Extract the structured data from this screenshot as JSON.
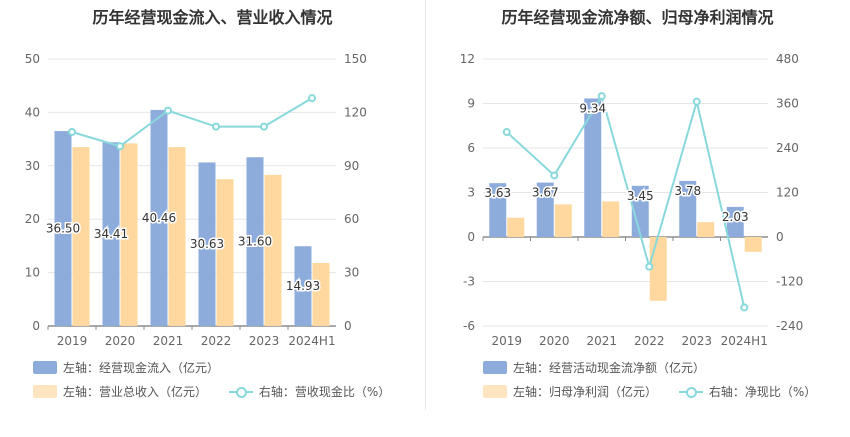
{
  "colors": {
    "bar_a": "#8eacdb",
    "bar_b": "#fed89f",
    "line": "#88d8dc",
    "grid": "#e6e6e6",
    "tick": "#666666"
  },
  "chart_data": [
    {
      "type": "bar",
      "title": "历年经营现金流入、营业收入情况",
      "categories": [
        "2019",
        "2020",
        "2021",
        "2022",
        "2023",
        "2024H1"
      ],
      "left_axis": {
        "ylim": [
          0,
          50
        ],
        "ticks": [
          0,
          10,
          20,
          30,
          40,
          50
        ]
      },
      "right_axis": {
        "ylim": [
          0,
          150
        ],
        "ticks": [
          0,
          30,
          60,
          90,
          120,
          150
        ]
      },
      "series": [
        {
          "name": "经营现金流入",
          "legend": "左轴：经营现金流入（亿元）",
          "axis": "left",
          "kind": "bar",
          "values": [
            36.5,
            34.41,
            40.46,
            30.63,
            31.6,
            14.93
          ],
          "labels": [
            "36.50",
            "34.41",
            "40.46",
            "30.63",
            "31.60",
            "14.93"
          ]
        },
        {
          "name": "营业总收入",
          "legend": "左轴：营业总收入（亿元）",
          "axis": "left",
          "kind": "bar",
          "values": [
            33.5,
            34.2,
            33.5,
            27.5,
            28.3,
            11.8
          ]
        },
        {
          "name": "营收现金比",
          "legend": "右轴：营收现金比（%）",
          "axis": "right",
          "kind": "line",
          "values": [
            109,
            101,
            121,
            112,
            112,
            128
          ]
        }
      ]
    },
    {
      "type": "bar",
      "title": "历年经营现金流净额、归母净利润情况",
      "categories": [
        "2019",
        "2020",
        "2021",
        "2022",
        "2023",
        "2024H1"
      ],
      "left_axis": {
        "ylim": [
          -6,
          12
        ],
        "ticks": [
          -6,
          -3,
          0,
          3,
          6,
          9,
          12
        ]
      },
      "right_axis": {
        "ylim": [
          -240,
          480
        ],
        "ticks": [
          -240,
          -120,
          0,
          120,
          240,
          360,
          480
        ]
      },
      "series": [
        {
          "name": "经营活动现金流净额",
          "legend": "左轴：经营活动现金流净额（亿元）",
          "axis": "left",
          "kind": "bar",
          "values": [
            3.63,
            3.67,
            9.34,
            3.45,
            3.78,
            2.03
          ],
          "labels": [
            "3.63",
            "3.67",
            "9.34",
            "3.45",
            "3.78",
            "2.03"
          ]
        },
        {
          "name": "归母净利润",
          "legend": "左轴：归母净利润（亿元）",
          "axis": "left",
          "kind": "bar",
          "values": [
            1.3,
            2.2,
            2.4,
            -4.3,
            1.0,
            -1.0
          ]
        },
        {
          "name": "净现比",
          "legend": "右轴：净现比（%）",
          "axis": "right",
          "kind": "line",
          "values": [
            283,
            166,
            380,
            -80,
            365,
            -190
          ]
        }
      ]
    }
  ]
}
